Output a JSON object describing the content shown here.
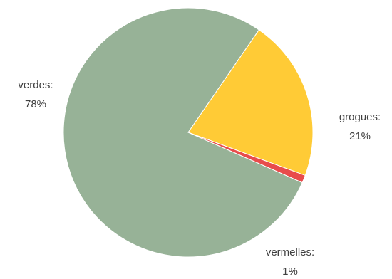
{
  "chart_data": {
    "type": "pie",
    "title": "",
    "start_angle_deg": 34.6,
    "direction": "clockwise",
    "slices": [
      {
        "label": "grogues",
        "value": 21,
        "value_label": "21%",
        "color": "#FFCB36"
      },
      {
        "label": "vermelles",
        "value": 1,
        "value_label": "1%",
        "color": "#E84C4C"
      },
      {
        "label": "verdes",
        "value": 78,
        "value_label": "78%",
        "color": "#97B297"
      }
    ],
    "legend": "none"
  }
}
